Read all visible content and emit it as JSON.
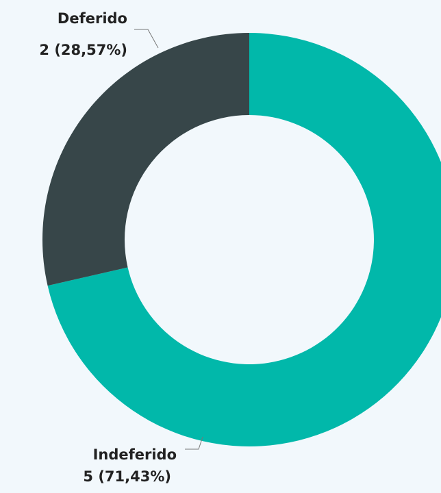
{
  "chart_data": {
    "type": "donut",
    "categories": [
      "Indeferido",
      "Deferido"
    ],
    "values": [
      5,
      2
    ],
    "value_labels": [
      "5 (71,43%)",
      "2 (28,57%)"
    ],
    "colors": [
      "#01b8aa",
      "#374649"
    ]
  }
}
